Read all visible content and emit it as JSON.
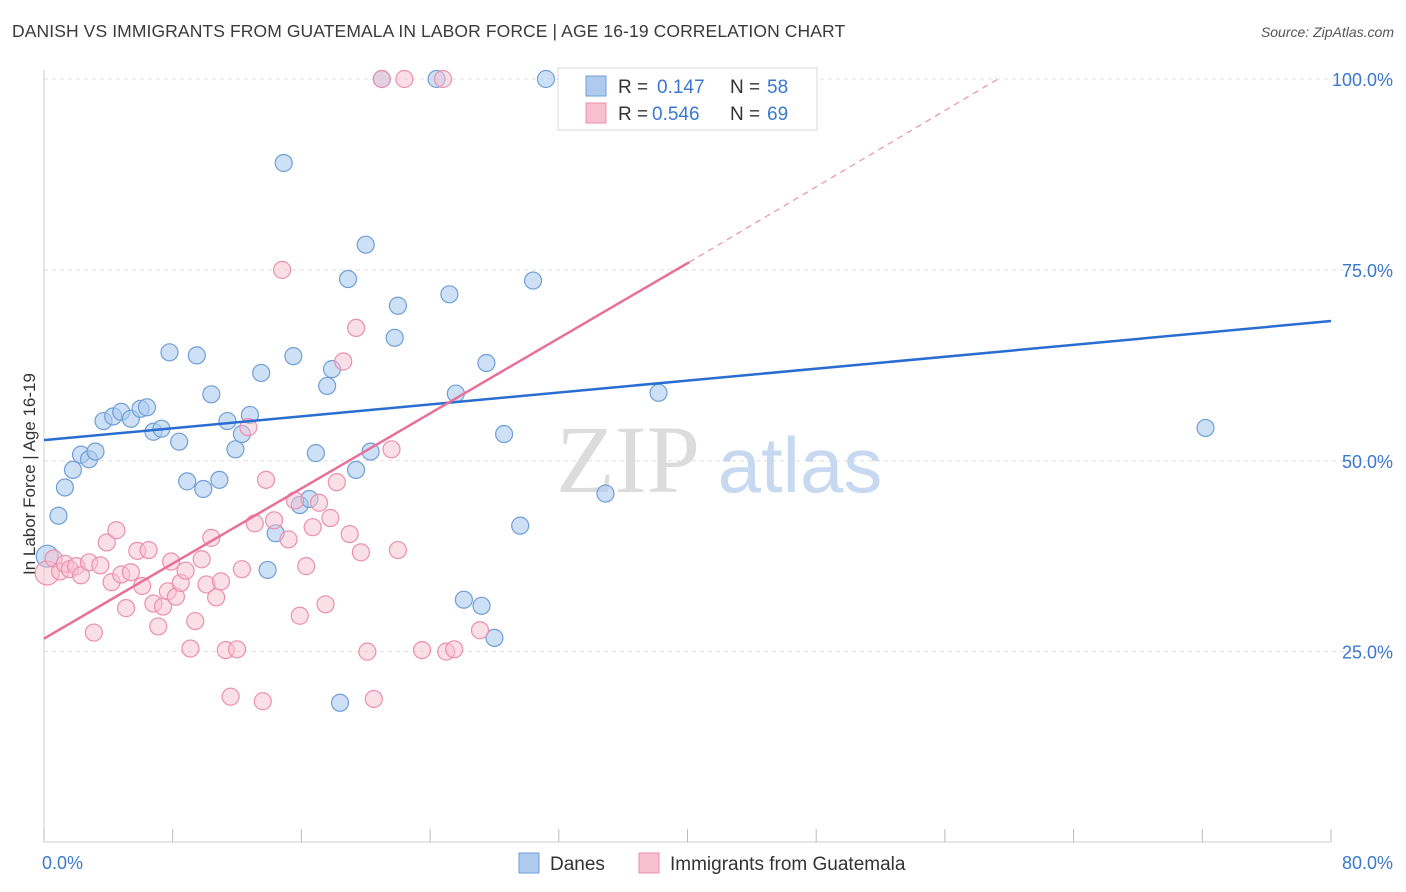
{
  "title": "DANISH VS IMMIGRANTS FROM GUATEMALA IN LABOR FORCE | AGE 16-19 CORRELATION CHART",
  "source": "Source: ZipAtlas.com",
  "watermark": {
    "zip": "ZIP",
    "atlas": "atlas"
  },
  "legend_box": {
    "rows": [
      {
        "r_label": "R =",
        "r_value": "0.147",
        "n_label": "N =",
        "n_value": "58"
      },
      {
        "r_label": "R =",
        "r_value": "0.546",
        "n_label": "N =",
        "n_value": "69"
      }
    ]
  },
  "colors": {
    "blue_fill": "#aecbee",
    "blue_stroke": "#6f9fd8",
    "blue_line": "#2a6dd1",
    "pink_fill": "#f7bfd0",
    "pink_stroke": "#ec8fae",
    "pink_line": "#e8709a",
    "value_text": "#3a78d0",
    "grid": "#dddddd"
  },
  "chart_data": {
    "type": "scatter",
    "title": "DANISH VS IMMIGRANTS FROM GUATEMALA IN LABOR FORCE | AGE 16-19 CORRELATION CHART",
    "xlabel": "",
    "ylabel": "In Labor Force | Age 16-19",
    "xlim": [
      0,
      80
    ],
    "ylim": [
      0,
      105
    ],
    "x_tick_labels": [
      {
        "value": 0,
        "label": "0.0%"
      },
      {
        "value": 80,
        "label": "80.0%"
      }
    ],
    "y_tick_labels": [
      {
        "value": 25,
        "label": "25.0%"
      },
      {
        "value": 50,
        "label": "50.0%"
      },
      {
        "value": 75,
        "label": "75.0%"
      },
      {
        "value": 100,
        "label": "100.0%"
      }
    ],
    "grid": true,
    "legend_position": "bottom",
    "series": [
      {
        "name": "Danes",
        "color": "#aecbee",
        "stats": {
          "R": 0.147,
          "N": 58
        },
        "trend": {
          "x": [
            0,
            80
          ],
          "y": [
            52.7,
            68.3
          ],
          "style": "solid"
        },
        "points": [
          [
            0.2,
            37.5
          ],
          [
            0.9,
            42.8
          ],
          [
            1.3,
            46.5
          ],
          [
            1.8,
            48.8
          ],
          [
            2.3,
            50.8
          ],
          [
            2.8,
            50.2
          ],
          [
            3.2,
            51.2
          ],
          [
            3.7,
            55.2
          ],
          [
            4.3,
            55.8
          ],
          [
            4.8,
            56.4
          ],
          [
            5.4,
            55.5
          ],
          [
            6.0,
            56.8
          ],
          [
            6.4,
            57.0
          ],
          [
            6.8,
            53.8
          ],
          [
            7.3,
            54.2
          ],
          [
            7.8,
            64.2
          ],
          [
            8.4,
            52.5
          ],
          [
            8.9,
            47.3
          ],
          [
            9.5,
            63.8
          ],
          [
            9.9,
            46.3
          ],
          [
            10.4,
            58.7
          ],
          [
            10.9,
            47.5
          ],
          [
            11.4,
            55.2
          ],
          [
            11.9,
            51.5
          ],
          [
            12.3,
            53.5
          ],
          [
            12.8,
            56.0
          ],
          [
            13.5,
            61.5
          ],
          [
            13.9,
            35.7
          ],
          [
            14.4,
            40.5
          ],
          [
            14.9,
            89.0
          ],
          [
            15.5,
            63.7
          ],
          [
            15.9,
            44.2
          ],
          [
            16.5,
            45.0
          ],
          [
            16.9,
            51.0
          ],
          [
            17.6,
            59.8
          ],
          [
            17.9,
            62.0
          ],
          [
            18.4,
            18.3
          ],
          [
            18.9,
            73.8
          ],
          [
            19.4,
            48.8
          ],
          [
            20.0,
            78.3
          ],
          [
            20.3,
            51.2
          ],
          [
            21.0,
            100
          ],
          [
            21.8,
            66.1
          ],
          [
            22.0,
            70.3
          ],
          [
            24.4,
            100
          ],
          [
            25.2,
            71.8
          ],
          [
            25.6,
            58.8
          ],
          [
            26.1,
            31.8
          ],
          [
            27.2,
            31.0
          ],
          [
            27.5,
            62.8
          ],
          [
            28.0,
            26.8
          ],
          [
            28.6,
            53.5
          ],
          [
            29.6,
            41.5
          ],
          [
            30.4,
            73.6
          ],
          [
            31.2,
            100
          ],
          [
            34.9,
            45.7
          ],
          [
            38.2,
            58.9
          ],
          [
            72.2,
            54.3
          ]
        ]
      },
      {
        "name": "Immigrants from Guatemala",
        "color": "#f7bfd0",
        "stats": {
          "R": 0.546,
          "N": 69
        },
        "trend": {
          "x": [
            0,
            40.1
          ],
          "y": [
            26.7,
            76.0
          ],
          "style": "solid",
          "extension": {
            "x": [
              40.1,
              59.3
            ],
            "y": [
              76.0,
              100
            ],
            "style": "dashed"
          }
        },
        "points": [
          [
            0.2,
            35.3
          ],
          [
            0.6,
            37.2
          ],
          [
            1.0,
            35.5
          ],
          [
            1.3,
            36.5
          ],
          [
            1.6,
            35.8
          ],
          [
            2.0,
            36.2
          ],
          [
            2.3,
            35.0
          ],
          [
            2.8,
            36.7
          ],
          [
            3.1,
            27.5
          ],
          [
            3.5,
            36.3
          ],
          [
            3.9,
            39.3
          ],
          [
            4.2,
            34.1
          ],
          [
            4.5,
            40.9
          ],
          [
            4.8,
            35.1
          ],
          [
            5.1,
            30.7
          ],
          [
            5.4,
            35.4
          ],
          [
            5.8,
            38.2
          ],
          [
            6.1,
            33.6
          ],
          [
            6.5,
            38.3
          ],
          [
            6.8,
            31.3
          ],
          [
            7.1,
            28.3
          ],
          [
            7.4,
            30.9
          ],
          [
            7.7,
            32.9
          ],
          [
            7.9,
            36.8
          ],
          [
            8.2,
            32.2
          ],
          [
            8.5,
            34.0
          ],
          [
            8.8,
            35.6
          ],
          [
            9.1,
            25.4
          ],
          [
            9.4,
            29.0
          ],
          [
            9.8,
            37.1
          ],
          [
            10.1,
            33.8
          ],
          [
            10.4,
            39.9
          ],
          [
            10.7,
            32.1
          ],
          [
            11.0,
            34.2
          ],
          [
            11.3,
            25.2
          ],
          [
            11.6,
            19.1
          ],
          [
            12.0,
            25.3
          ],
          [
            12.3,
            35.8
          ],
          [
            12.7,
            54.4
          ],
          [
            13.1,
            41.8
          ],
          [
            13.6,
            18.5
          ],
          [
            13.8,
            47.5
          ],
          [
            14.3,
            42.2
          ],
          [
            14.8,
            75.0
          ],
          [
            15.2,
            39.7
          ],
          [
            15.6,
            44.8
          ],
          [
            15.9,
            29.7
          ],
          [
            16.3,
            36.2
          ],
          [
            16.7,
            41.3
          ],
          [
            17.1,
            44.5
          ],
          [
            17.5,
            31.2
          ],
          [
            17.8,
            42.5
          ],
          [
            18.2,
            47.2
          ],
          [
            18.6,
            63.0
          ],
          [
            19.0,
            40.4
          ],
          [
            19.4,
            67.4
          ],
          [
            19.7,
            38.0
          ],
          [
            20.1,
            25.0
          ],
          [
            20.5,
            18.8
          ],
          [
            21.0,
            100
          ],
          [
            21.6,
            51.5
          ],
          [
            22.0,
            38.3
          ],
          [
            22.4,
            100
          ],
          [
            23.5,
            25.2
          ],
          [
            24.8,
            100
          ],
          [
            25.0,
            25.0
          ],
          [
            25.5,
            25.3
          ],
          [
            27.1,
            27.8
          ],
          [
            37.6,
            100
          ]
        ]
      }
    ]
  }
}
